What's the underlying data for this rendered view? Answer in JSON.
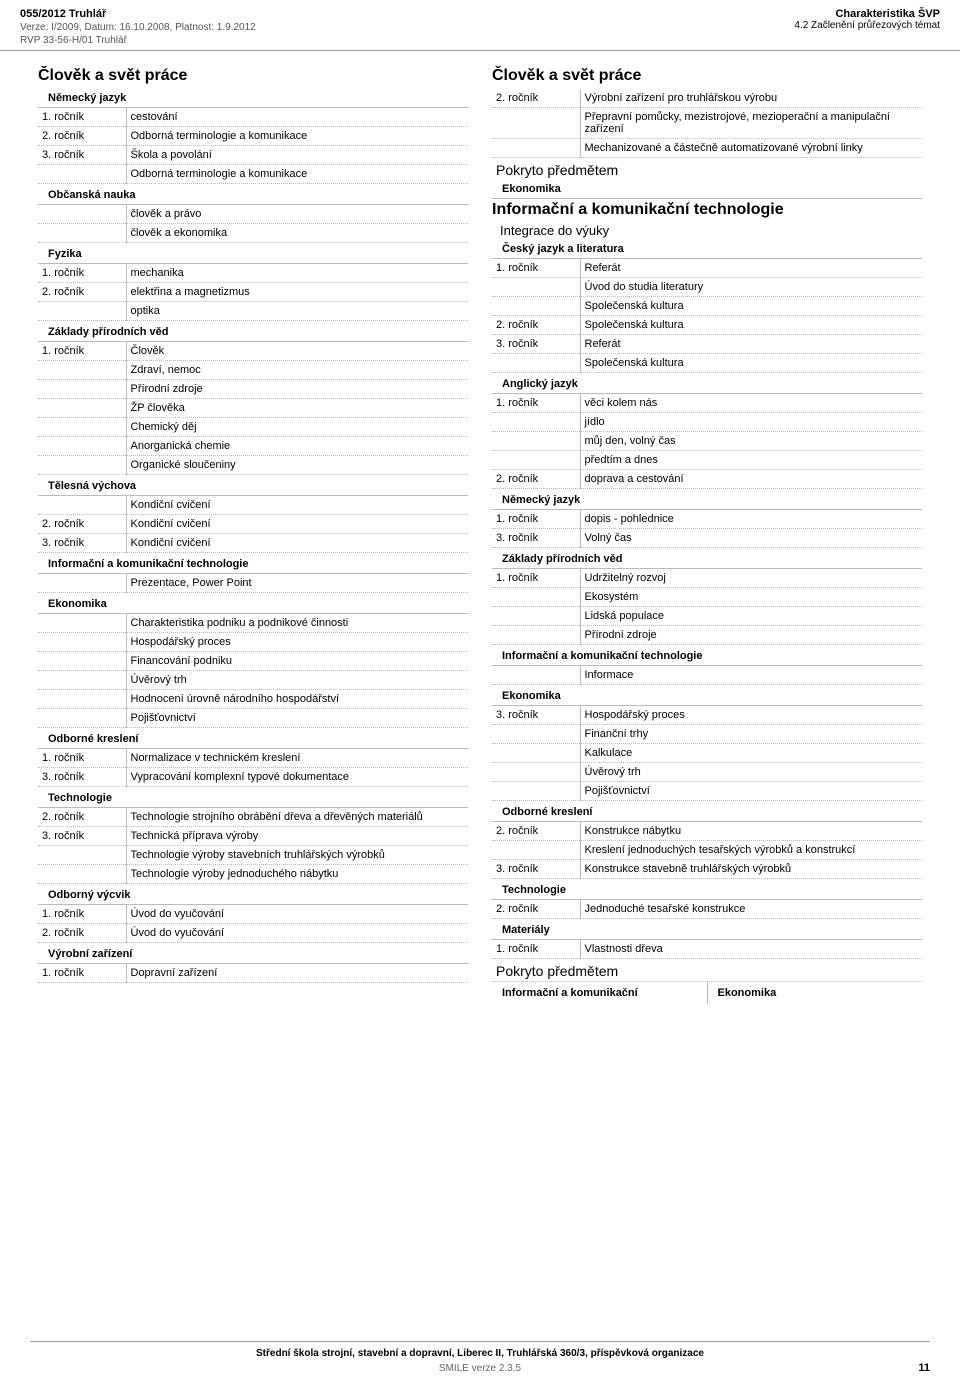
{
  "header": {
    "docnum": "055/2012 Truhlář",
    "verze": "Verze: I/2009, Datum: 16.10.2008, Platnost: 1.9.2012",
    "rvp": "RVP 33-56-H/01 Truhlář",
    "right1": "Charakteristika ŠVP",
    "right2": "4.2 Začlenění průřezových témat"
  },
  "left": {
    "h1": "Člověk a svět práce",
    "subjects": [
      {
        "name": "Německý jazyk",
        "rows": [
          {
            "yr": "1. ročník",
            "txt": "cestování"
          },
          {
            "yr": "2. ročník",
            "txt": "Odborná terminologie a komunikace"
          },
          {
            "yr": "3. ročník",
            "txt": "Škola a povolání"
          },
          {
            "yr": "",
            "txt": "Odborná terminologie a komunikace"
          }
        ]
      },
      {
        "name": "Občanská nauka",
        "rows": [
          {
            "yr": "",
            "txt": "člověk a právo"
          },
          {
            "yr": "",
            "txt": "člověk a ekonomika"
          }
        ]
      },
      {
        "name": "Fyzika",
        "rows": [
          {
            "yr": "1. ročník",
            "txt": "mechanika"
          },
          {
            "yr": "2. ročník",
            "txt": "elektřina a magnetizmus"
          },
          {
            "yr": "",
            "txt": "optika"
          }
        ]
      },
      {
        "name": "Základy přírodních věd",
        "rows": [
          {
            "yr": "1. ročník",
            "txt": "Člověk"
          },
          {
            "yr": "",
            "txt": "Zdraví, nemoc"
          },
          {
            "yr": "",
            "txt": "Přírodní zdroje"
          },
          {
            "yr": "",
            "txt": "ŽP člověka"
          },
          {
            "yr": "",
            "txt": "Chemický děj"
          },
          {
            "yr": "",
            "txt": "Anorganická chemie"
          },
          {
            "yr": "",
            "txt": "Organické sloučeniny"
          }
        ]
      },
      {
        "name": "Tělesná výchova",
        "rows": [
          {
            "yr": "",
            "txt": "Kondiční cvičení"
          },
          {
            "yr": "2. ročník",
            "txt": "Kondiční cvičení"
          },
          {
            "yr": "3. ročník",
            "txt": "Kondiční cvičení"
          }
        ]
      },
      {
        "name": "Informační a komunikační technologie",
        "rows": [
          {
            "yr": "",
            "txt": "Prezentace, Power Point"
          }
        ]
      },
      {
        "name": "Ekonomika",
        "rows": [
          {
            "yr": "",
            "txt": "Charakteristika podniku a podnikové činnosti"
          },
          {
            "yr": "",
            "txt": "Hospodářský proces"
          },
          {
            "yr": "",
            "txt": "Financování podniku"
          },
          {
            "yr": "",
            "txt": "Úvěrový trh"
          },
          {
            "yr": "",
            "txt": "Hodnocení úrovně národního hospodářství"
          },
          {
            "yr": "",
            "txt": "Pojišťovnictví"
          }
        ]
      },
      {
        "name": "Odborné kreslení",
        "rows": [
          {
            "yr": "1. ročník",
            "txt": "Normalizace v technickém kreslení"
          },
          {
            "yr": "3. ročník",
            "txt": "Vypracování komplexní typové dokumentace"
          }
        ]
      },
      {
        "name": "Technologie",
        "rows": [
          {
            "yr": "2. ročník",
            "txt": "Technologie strojního obrábění dřeva a dřevěných materiálů"
          },
          {
            "yr": "3. ročník",
            "txt": "Technická příprava výroby"
          },
          {
            "yr": "",
            "txt": "Technologie výroby stavebních truhlářských výrobků"
          },
          {
            "yr": "",
            "txt": "Technologie výroby jednoduchého nábytku"
          }
        ]
      },
      {
        "name": "Odborný výcvik",
        "rows": [
          {
            "yr": "1. ročník",
            "txt": "Úvod do vyučování"
          },
          {
            "yr": "2. ročník",
            "txt": "Úvod do vyučování"
          }
        ]
      },
      {
        "name": "Výrobní zařízení",
        "rows": [
          {
            "yr": "1. ročník",
            "txt": "Dopravní zařízení"
          }
        ]
      }
    ]
  },
  "right": {
    "h1a": "Člověk a svět práce",
    "topRows": [
      {
        "yr": "2. ročník",
        "txt": "Výrobní zařízení pro truhlářskou výrobu"
      },
      {
        "yr": "",
        "txt": "Přepravní pomůcky, mezistrojové, mezioperační a manipulační zařízení"
      },
      {
        "yr": "",
        "txt": "Mechanizované a částečně automatizované výrobní linky"
      }
    ],
    "pokryto1": "Pokryto předmětem",
    "pokrytoSubj1": "Ekonomika",
    "h1b": "Informační a komunikační technologie",
    "h2b": "Integrace do výuky",
    "subjects": [
      {
        "name": "Český jazyk a literatura",
        "rows": [
          {
            "yr": "1. ročník",
            "txt": "Referát"
          },
          {
            "yr": "",
            "txt": "Úvod do studia literatury"
          },
          {
            "yr": "",
            "txt": "Společenská kultura"
          },
          {
            "yr": "2. ročník",
            "txt": "Společenská kultura"
          },
          {
            "yr": "3. ročník",
            "txt": "Referát"
          },
          {
            "yr": "",
            "txt": "Společenská kultura"
          }
        ]
      },
      {
        "name": "Anglický jazyk",
        "rows": [
          {
            "yr": "1. ročník",
            "txt": "věci kolem nás"
          },
          {
            "yr": "",
            "txt": "jídlo"
          },
          {
            "yr": "",
            "txt": "můj den, volný čas"
          },
          {
            "yr": "",
            "txt": "předtím a dnes"
          },
          {
            "yr": "2. ročník",
            "txt": "doprava a cestování"
          }
        ]
      },
      {
        "name": "Německý jazyk",
        "rows": [
          {
            "yr": "1. ročník",
            "txt": "dopis - pohlednice"
          },
          {
            "yr": "3. ročník",
            "txt": "Volný čas"
          }
        ]
      },
      {
        "name": "Základy přírodních věd",
        "rows": [
          {
            "yr": "1. ročník",
            "txt": "Udržitelný rozvoj"
          },
          {
            "yr": "",
            "txt": "Ekosystém"
          },
          {
            "yr": "",
            "txt": "Lidská populace"
          },
          {
            "yr": "",
            "txt": "Přírodní zdroje"
          }
        ]
      },
      {
        "name": "Informační a komunikační technologie",
        "rows": [
          {
            "yr": "",
            "txt": "Informace"
          }
        ]
      },
      {
        "name": "Ekonomika",
        "rows": [
          {
            "yr": "3. ročník",
            "txt": "Hospodářský proces"
          },
          {
            "yr": "",
            "txt": "Finanční trhy"
          },
          {
            "yr": "",
            "txt": "Kalkulace"
          },
          {
            "yr": "",
            "txt": "Úvěrový trh"
          },
          {
            "yr": "",
            "txt": "Pojišťovnictví"
          }
        ]
      },
      {
        "name": "Odborné kreslení",
        "rows": [
          {
            "yr": "2. ročník",
            "txt": "Konstrukce nábytku"
          },
          {
            "yr": "",
            "txt": "Kreslení jednoduchých tesařských výrobků a konstrukcí"
          },
          {
            "yr": "3. ročník",
            "txt": "Konstrukce stavebně truhlářských výrobků"
          }
        ]
      },
      {
        "name": "Technologie",
        "rows": [
          {
            "yr": "2. ročník",
            "txt": "Jednoduché tesařské konstrukce"
          }
        ]
      },
      {
        "name": "Materiály",
        "rows": [
          {
            "yr": "1. ročník",
            "txt": "Vlastnosti dřeva"
          }
        ]
      }
    ],
    "pokryto2": "Pokryto předmětem",
    "bottom": {
      "a": "Informační a komunikační",
      "b": "Ekonomika"
    }
  },
  "footer": {
    "org": "Střední škola strojní, stavební a dopravní, Liberec II, Truhlářská 360/3, příspěvková organizace",
    "smile": "SMILE verze 2.3.5",
    "page": "11"
  }
}
